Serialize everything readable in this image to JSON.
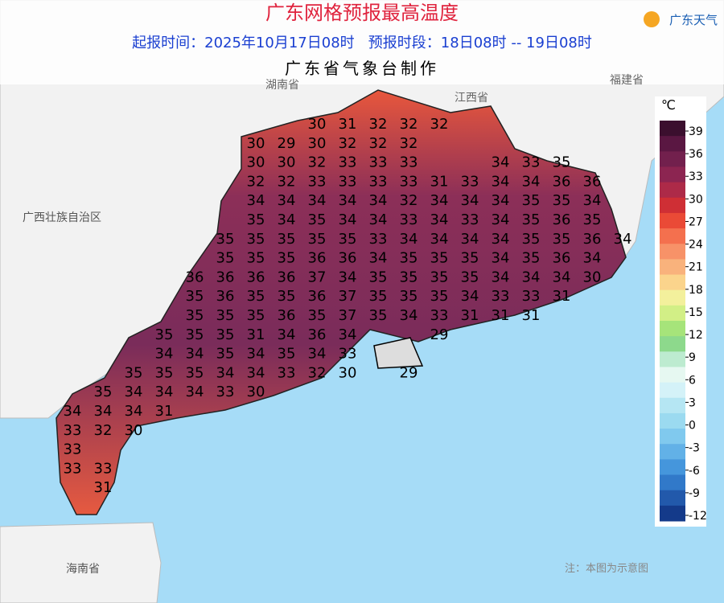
{
  "header": {
    "title": "广东网格预报最高温度",
    "subtitle": "起报时间：2025年10月17日08时   预报时段：18日08时 -- 19日08时",
    "maker": "广东省气象台制作",
    "logo": "广东天气"
  },
  "places": [
    "湖南省",
    "江西省",
    "福建省",
    "广西壮族自治区",
    "海南省"
  ],
  "note": "注：本图为示意图",
  "grid": {
    "rows": [
      [
        null,
        null,
        null,
        null,
        null,
        null,
        null,
        null,
        30,
        31,
        32,
        32,
        32,
        null,
        null,
        null,
        null,
        null,
        null
      ],
      [
        null,
        null,
        null,
        null,
        null,
        null,
        30,
        29,
        30,
        32,
        32,
        32,
        null,
        null,
        null,
        null,
        null,
        null,
        null
      ],
      [
        null,
        null,
        null,
        null,
        null,
        null,
        30,
        30,
        32,
        33,
        33,
        33,
        null,
        null,
        34,
        33,
        35,
        null,
        null
      ],
      [
        null,
        null,
        null,
        null,
        null,
        null,
        32,
        32,
        33,
        33,
        33,
        33,
        31,
        33,
        34,
        34,
        36,
        36,
        null
      ],
      [
        null,
        null,
        null,
        null,
        null,
        null,
        34,
        34,
        34,
        34,
        34,
        32,
        34,
        34,
        34,
        35,
        35,
        34,
        null
      ],
      [
        null,
        null,
        null,
        null,
        null,
        null,
        35,
        34,
        35,
        34,
        34,
        33,
        34,
        33,
        34,
        35,
        36,
        35,
        null
      ],
      [
        null,
        null,
        null,
        null,
        null,
        35,
        35,
        35,
        35,
        35,
        33,
        34,
        34,
        34,
        34,
        35,
        35,
        36,
        34
      ],
      [
        null,
        null,
        null,
        null,
        null,
        35,
        35,
        35,
        36,
        36,
        34,
        35,
        35,
        35,
        34,
        35,
        36,
        34,
        null
      ],
      [
        null,
        null,
        null,
        null,
        36,
        36,
        36,
        36,
        37,
        34,
        35,
        35,
        35,
        35,
        34,
        34,
        34,
        30,
        null
      ],
      [
        null,
        null,
        null,
        null,
        35,
        36,
        35,
        35,
        36,
        37,
        35,
        35,
        35,
        34,
        33,
        33,
        31,
        null,
        null
      ],
      [
        null,
        null,
        null,
        null,
        35,
        35,
        35,
        36,
        35,
        37,
        35,
        34,
        33,
        31,
        31,
        31,
        null,
        null,
        null
      ],
      [
        null,
        null,
        null,
        35,
        35,
        35,
        31,
        34,
        36,
        34,
        null,
        null,
        29,
        null,
        null,
        null,
        null,
        null,
        null
      ],
      [
        null,
        null,
        null,
        34,
        34,
        35,
        34,
        35,
        34,
        33,
        null,
        null,
        null,
        null,
        null,
        null,
        null,
        null,
        null
      ],
      [
        null,
        null,
        35,
        35,
        35,
        34,
        34,
        33,
        32,
        30,
        null,
        29,
        null,
        null,
        null,
        null,
        null,
        null,
        null
      ],
      [
        null,
        35,
        34,
        34,
        34,
        33,
        30,
        null,
        null,
        null,
        null,
        null,
        null,
        null,
        null,
        null,
        null,
        null,
        null
      ],
      [
        34,
        34,
        34,
        31,
        null,
        null,
        null,
        null,
        null,
        null,
        null,
        null,
        null,
        null,
        null,
        null,
        null,
        null,
        null
      ],
      [
        33,
        32,
        30,
        null,
        null,
        null,
        null,
        null,
        null,
        null,
        null,
        null,
        null,
        null,
        null,
        null,
        null,
        null,
        null
      ],
      [
        33,
        null,
        null,
        null,
        null,
        null,
        null,
        null,
        null,
        null,
        null,
        null,
        null,
        null,
        null,
        null,
        null,
        null,
        null
      ],
      [
        33,
        33,
        null,
        null,
        null,
        null,
        null,
        null,
        null,
        null,
        null,
        null,
        null,
        null,
        null,
        null,
        null,
        null,
        null
      ],
      [
        null,
        31,
        null,
        null,
        null,
        null,
        null,
        null,
        null,
        null,
        null,
        null,
        null,
        null,
        null,
        null,
        null,
        null,
        null
      ]
    ]
  },
  "legend": {
    "unit": "℃",
    "ylim": [
      -12,
      39
    ],
    "ticks": [
      39,
      36,
      33,
      30,
      27,
      24,
      21,
      18,
      15,
      12,
      9,
      6,
      3,
      0,
      -3,
      -6,
      -9,
      -12
    ],
    "colors": [
      "#3b0f2e",
      "#5a1742",
      "#72204d",
      "#8c2551",
      "#ad2a48",
      "#cf2f35",
      "#ea4a36",
      "#f4704e",
      "#f79268",
      "#f9b27c",
      "#fbd48c",
      "#f3f09c",
      "#d2ef86",
      "#a6e47a",
      "#8dd98c",
      "#bdebd0",
      "#e6f8f1",
      "#d4f2f8",
      "#b5e6f3",
      "#9bdaf0",
      "#80c9ee",
      "#62b1e7",
      "#4596dc",
      "#3179c9",
      "#2259ab",
      "#143a8a"
    ]
  }
}
